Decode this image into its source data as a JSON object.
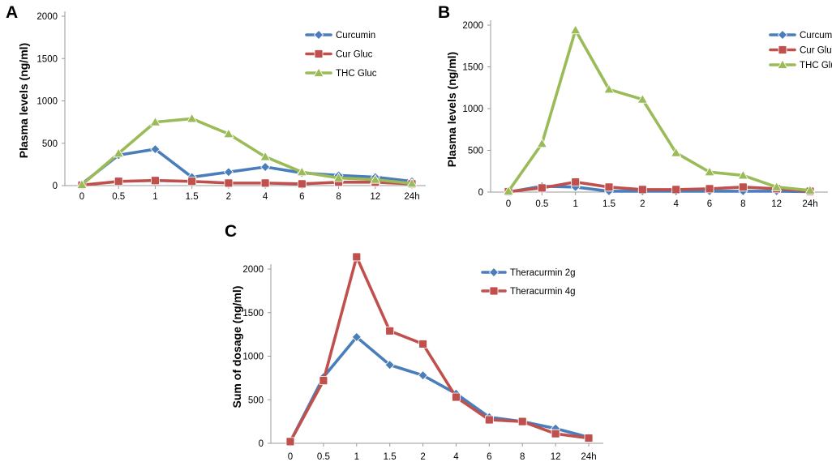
{
  "chart_data": [
    {
      "panel": "A",
      "type": "line",
      "categories": [
        "0",
        "0.5",
        "1",
        "1.5",
        "2",
        "4",
        "6",
        "8",
        "12",
        "24h"
      ],
      "ylabel": "Plasma levels (ng/ml)",
      "xlabel": "",
      "ylim": [
        0,
        2000
      ],
      "yticks": [
        0,
        500,
        1000,
        1500,
        2000
      ],
      "legend_position": "top-right",
      "series": [
        {
          "name": "Curcumin",
          "color": "#4a7ebb",
          "marker": "diamond",
          "values": [
            20,
            360,
            430,
            100,
            160,
            220,
            150,
            120,
            100,
            50
          ]
        },
        {
          "name": "Cur Gluc",
          "color": "#c0504d",
          "marker": "square",
          "values": [
            5,
            50,
            60,
            50,
            30,
            30,
            20,
            40,
            40,
            20
          ]
        },
        {
          "name": "THC Gluc",
          "color": "#9bbb59",
          "marker": "triangle",
          "values": [
            10,
            380,
            750,
            790,
            610,
            340,
            160,
            90,
            70,
            25
          ]
        }
      ]
    },
    {
      "panel": "B",
      "type": "line",
      "categories": [
        "0",
        "0.5",
        "1",
        "1.5",
        "2",
        "4",
        "6",
        "8",
        "12",
        "24h"
      ],
      "ylabel": "Plasma levels (ng/ml)",
      "xlabel": "",
      "ylim": [
        0,
        2000
      ],
      "yticks": [
        0,
        500,
        1000,
        1500,
        2000
      ],
      "legend_position": "top-right",
      "series": [
        {
          "name": "Curcumin",
          "color": "#4a7ebb",
          "marker": "diamond",
          "values": [
            0,
            70,
            60,
            10,
            10,
            10,
            10,
            10,
            10,
            5
          ]
        },
        {
          "name": "Cur Gluc",
          "color": "#c0504d",
          "marker": "square",
          "values": [
            5,
            50,
            120,
            60,
            30,
            30,
            40,
            60,
            40,
            10
          ]
        },
        {
          "name": "THC Gluc",
          "color": "#9bbb59",
          "marker": "triangle",
          "values": [
            10,
            580,
            1940,
            1230,
            1110,
            470,
            240,
            200,
            60,
            20
          ]
        }
      ]
    },
    {
      "panel": "C",
      "type": "line",
      "categories": [
        "0",
        "0.5",
        "1",
        "1.5",
        "2",
        "4",
        "6",
        "8",
        "12",
        "24h"
      ],
      "ylabel": "Sum of dosage (ng/ml)",
      "xlabel": "",
      "ylim": [
        0,
        2000
      ],
      "yticks": [
        0,
        500,
        1000,
        1500,
        2000
      ],
      "legend_position": "top-right",
      "series": [
        {
          "name": "Theracurmin 2g",
          "color": "#4a7ebb",
          "marker": "diamond",
          "values": [
            20,
            760,
            1220,
            900,
            780,
            570,
            300,
            250,
            170,
            70
          ]
        },
        {
          "name": "Theracurmin 4g",
          "color": "#c0504d",
          "marker": "square",
          "values": [
            20,
            720,
            2140,
            1290,
            1140,
            530,
            270,
            250,
            110,
            60
          ]
        }
      ]
    }
  ]
}
